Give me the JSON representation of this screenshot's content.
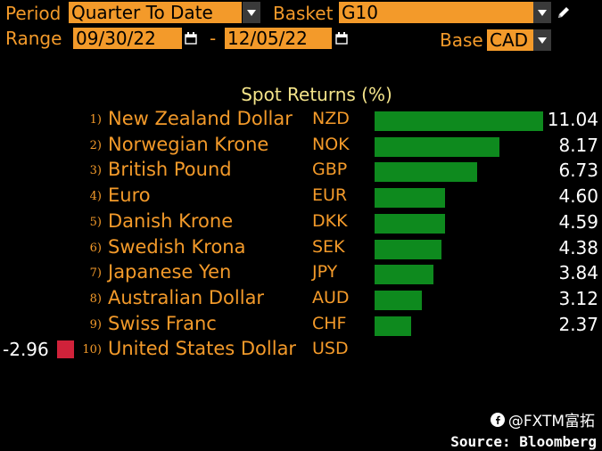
{
  "header": {
    "period_label": "Period",
    "period_value": "Quarter To Date",
    "basket_label": "Basket",
    "basket_value": "G10",
    "range_label": "Range",
    "range_start": "09/30/22",
    "range_sep": "-",
    "range_end": "12/05/22",
    "base_label": "Base",
    "base_value": "CAD"
  },
  "chart_data": {
    "type": "bar",
    "title": "Spot Returns (%)",
    "orientation": "horizontal",
    "xlim": [
      -2.96,
      11.04
    ],
    "rows": [
      {
        "rank": "1)",
        "name": "New Zealand Dollar",
        "code": "NZD",
        "value": 11.04,
        "value_label": "11.04"
      },
      {
        "rank": "2)",
        "name": "Norwegian Krone",
        "code": "NOK",
        "value": 8.17,
        "value_label": "8.17"
      },
      {
        "rank": "3)",
        "name": "British Pound",
        "code": "GBP",
        "value": 6.73,
        "value_label": "6.73"
      },
      {
        "rank": "4)",
        "name": "Euro",
        "code": "EUR",
        "value": 4.6,
        "value_label": "4.60"
      },
      {
        "rank": "5)",
        "name": "Danish Krone",
        "code": "DKK",
        "value": 4.59,
        "value_label": "4.59"
      },
      {
        "rank": "6)",
        "name": "Swedish Krona",
        "code": "SEK",
        "value": 4.38,
        "value_label": "4.38"
      },
      {
        "rank": "7)",
        "name": "Japanese Yen",
        "code": "JPY",
        "value": 3.84,
        "value_label": "3.84"
      },
      {
        "rank": "8)",
        "name": "Australian Dollar",
        "code": "AUD",
        "value": 3.12,
        "value_label": "3.12"
      },
      {
        "rank": "9)",
        "name": "Swiss Franc",
        "code": "CHF",
        "value": 2.37,
        "value_label": "2.37"
      },
      {
        "rank": "10)",
        "name": "United States Dollar",
        "code": "USD",
        "value": -2.96,
        "value_label": "-2.96"
      }
    ],
    "colors": {
      "positive": "#0e8a1e",
      "negative": "#d0223a"
    }
  },
  "footer": {
    "brand": "@FXTM富拓",
    "brand_icon": "facebook-icon",
    "source": "Source: Bloomberg"
  }
}
